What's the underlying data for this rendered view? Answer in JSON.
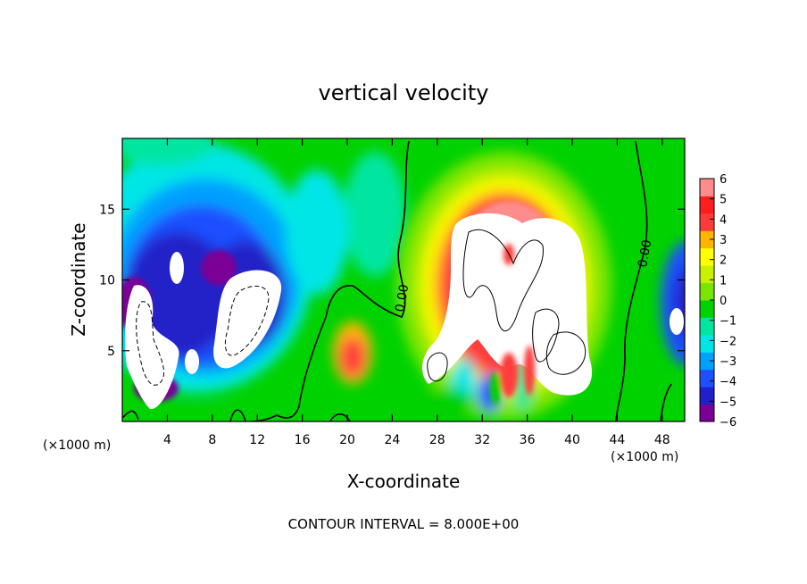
{
  "chart_data": {
    "type": "heatmap",
    "title": "vertical velocity",
    "xlabel": "X-coordinate",
    "ylabel": "Z-coordinate",
    "x_unit_left": "(×1000 m)",
    "x_unit_right": "(×1000 m)",
    "xlim": [
      0,
      50
    ],
    "ylim": [
      0,
      20
    ],
    "x_ticks": [
      "4",
      "8",
      "12",
      "16",
      "20",
      "24",
      "28",
      "32",
      "36",
      "40",
      "44",
      "48"
    ],
    "x_tick_values": [
      4,
      8,
      12,
      16,
      20,
      24,
      28,
      32,
      36,
      40,
      44,
      48
    ],
    "y_ticks": [
      "5",
      "10",
      "15"
    ],
    "y_tick_values": [
      5,
      10,
      15
    ],
    "colorbar": {
      "labels": [
        "6",
        "5",
        "4",
        "3",
        "2",
        "1",
        "0",
        "−1",
        "−2",
        "−3",
        "−4",
        "−5",
        "−6"
      ],
      "range": [
        -6,
        6
      ],
      "colors": [
        "#7a0096",
        "#2020c8",
        "#1e50ff",
        "#00a0ff",
        "#00e6e6",
        "#00e6a0",
        "#00d200",
        "#7ae600",
        "#c8f000",
        "#ffff00",
        "#ffb400",
        "#ff3c3c",
        "#ff1e1e",
        "#ff8c8c"
      ]
    },
    "zero_contour_labels": [
      "0.00",
      "0.00"
    ],
    "annotation": "CONTOUR INTERVAL = 8.000E+00",
    "field_features": [
      {
        "kind": "updraft_core",
        "x": 34,
        "z": 9,
        "peak": 8
      },
      {
        "kind": "updraft_core",
        "x": 29,
        "z": 4,
        "peak": 7
      },
      {
        "kind": "updraft_core",
        "x": 19.5,
        "z": 4.5,
        "peak": 4
      },
      {
        "kind": "downdraft_core",
        "x": 3,
        "z": 5,
        "peak": -9
      },
      {
        "kind": "downdraft_core",
        "x": 10.5,
        "z": 8,
        "peak": -8
      },
      {
        "kind": "downdraft_core",
        "x": 32.5,
        "z": 1.5,
        "peak": -5
      }
    ]
  }
}
